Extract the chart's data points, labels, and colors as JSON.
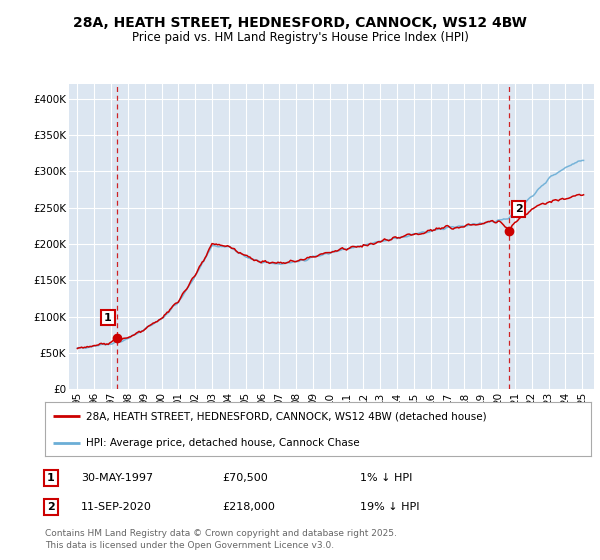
{
  "title_line1": "28A, HEATH STREET, HEDNESFORD, CANNOCK, WS12 4BW",
  "title_line2": "Price paid vs. HM Land Registry's House Price Index (HPI)",
  "background_color": "#dce6f1",
  "plot_bg_color": "#dce6f1",
  "legend_label_red": "28A, HEATH STREET, HEDNESFORD, CANNOCK, WS12 4BW (detached house)",
  "legend_label_blue": "HPI: Average price, detached house, Cannock Chase",
  "marker1_year": 1997.37,
  "marker1_value": 70500,
  "marker2_year": 2020.67,
  "marker2_value": 218000,
  "annotation1": [
    "1",
    "30-MAY-1997",
    "£70,500",
    "1% ↓ HPI"
  ],
  "annotation2": [
    "2",
    "11-SEP-2020",
    "£218,000",
    "19% ↓ HPI"
  ],
  "footer": "Contains HM Land Registry data © Crown copyright and database right 2025.\nThis data is licensed under the Open Government Licence v3.0.",
  "ylim": [
    0,
    420000
  ],
  "yticks": [
    0,
    50000,
    100000,
    150000,
    200000,
    250000,
    300000,
    350000,
    400000
  ],
  "ytick_labels": [
    "£0",
    "£50K",
    "£100K",
    "£150K",
    "£200K",
    "£250K",
    "£300K",
    "£350K",
    "£400K"
  ],
  "xlim_left": 1994.5,
  "xlim_right": 2025.7,
  "red_color": "#cc0000",
  "blue_color": "#6baed6",
  "grid_color": "white",
  "title_fontsize": 10,
  "subtitle_fontsize": 8.5,
  "tick_fontsize": 7.5,
  "legend_fontsize": 7.5,
  "ann_fontsize": 8.0,
  "footer_fontsize": 6.5
}
